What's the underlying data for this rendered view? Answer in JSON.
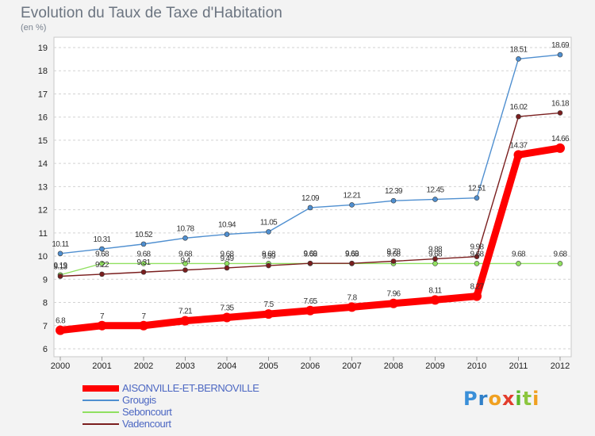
{
  "header": {
    "title": "Evolution du Taux de Taxe d'Habitation",
    "subtitle": "(en %)"
  },
  "logo": {
    "letters": [
      "P",
      "r",
      "o",
      "x",
      "i",
      "t",
      "i"
    ],
    "colors": [
      "#3a8fd8",
      "#2f7fc8",
      "#f0a020",
      "#e23c2c",
      "#5ab82a",
      "#8cc63e",
      "#f0a020"
    ]
  },
  "chart_data": {
    "type": "line",
    "title": "Evolution du Taux de Taxe d'Habitation",
    "ylabel": "(en %)",
    "xlabel": "",
    "x": [
      "2000",
      "2001",
      "2002",
      "2003",
      "2004",
      "2005",
      "2006",
      "2007",
      "2008",
      "2009",
      "2010",
      "2011",
      "2012"
    ],
    "ylim": [
      6,
      19
    ],
    "yticks": [
      "6",
      "7",
      "8",
      "9",
      "10",
      "11",
      "12",
      "13",
      "14",
      "15",
      "16",
      "17",
      "18",
      "19"
    ],
    "grid": "horizontal dashed",
    "legend_position": "bottom-left",
    "series": [
      {
        "name": "AISONVILLE-ET-BERNOVILLE",
        "color": "#ff0000",
        "values": [
          6.8,
          7,
          7,
          7.21,
          7.35,
          7.5,
          7.65,
          7.8,
          7.96,
          8.11,
          8.27,
          14.37,
          14.66
        ],
        "labels": [
          "6.8",
          "7",
          "7",
          "7.21",
          "7.35",
          "7.5",
          "7.65",
          "7.8",
          "7.96",
          "8.11",
          "8.27",
          "14.37",
          "14.66"
        ]
      },
      {
        "name": "Grougis",
        "color": "#4f8fd0",
        "values": [
          10.11,
          10.31,
          10.52,
          10.78,
          10.94,
          11.05,
          12.09,
          12.21,
          12.39,
          12.45,
          12.51,
          18.51,
          18.69
        ],
        "labels": [
          "10.11",
          "10.31",
          "10.52",
          "10.78",
          "10.94",
          "11.05",
          "12.09",
          "12.21",
          "12.39",
          "12.45",
          "12.51",
          "18.51",
          "18.69"
        ]
      },
      {
        "name": "Seboncourt",
        "color": "#90e060",
        "values": [
          9.19,
          9.68,
          9.68,
          9.68,
          9.68,
          9.68,
          9.68,
          9.68,
          9.68,
          9.68,
          9.68,
          9.68,
          9.68
        ],
        "labels": [
          "9.19",
          "9.68",
          "9.68",
          "9.68",
          "9.68",
          "9.68",
          "9.68",
          "9.68",
          "9.68",
          "9.68",
          "9.68",
          "9.68",
          "9.68"
        ]
      },
      {
        "name": "Vadencourt",
        "color": "#7a1e1e",
        "values": [
          9.13,
          9.22,
          9.31,
          9.4,
          9.49,
          9.59,
          9.69,
          9.69,
          9.78,
          9.88,
          9.98,
          16.02,
          16.18
        ],
        "labels": [
          "9.13",
          "9.22",
          "9.31",
          "9.4",
          "9.49",
          "9.59",
          "9.69",
          "9.69",
          "9.78",
          "9.88",
          "9.98",
          "16.02",
          "16.18"
        ]
      }
    ]
  }
}
